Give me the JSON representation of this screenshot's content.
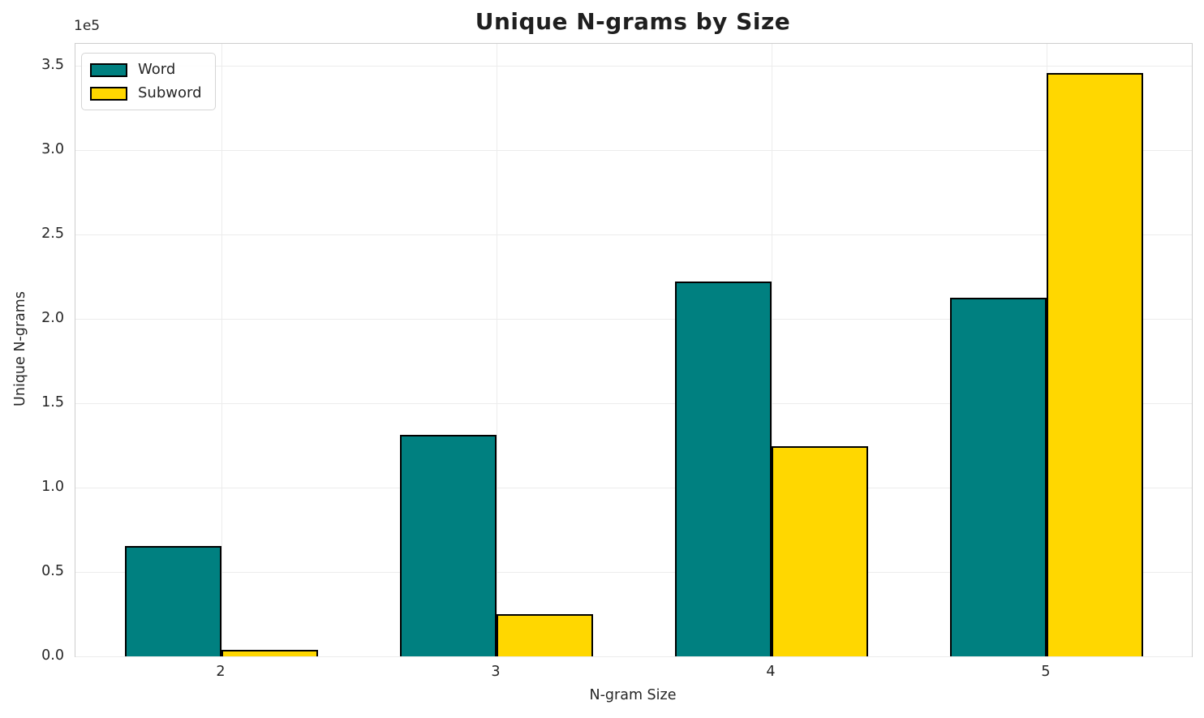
{
  "chart_data": {
    "type": "bar",
    "title": "Unique N-grams by Size",
    "xlabel": "N-gram Size",
    "ylabel": "Unique N-grams",
    "y_offset_text": "1e5",
    "categories": [
      "2",
      "3",
      "4",
      "5"
    ],
    "series": [
      {
        "name": "Word",
        "color": "#008080",
        "values": [
          65500,
          131500,
          222000,
          212500
        ]
      },
      {
        "name": "Subword",
        "color": "#FFD700",
        "values": [
          4000,
          24800,
          124500,
          345500
        ]
      }
    ],
    "ytick_labels": [
      "0.0",
      "0.5",
      "1.0",
      "1.5",
      "2.0",
      "2.5",
      "3.0",
      "3.5"
    ],
    "ytick_values": [
      0,
      50000,
      100000,
      150000,
      200000,
      250000,
      300000,
      350000
    ],
    "ylim": [
      0,
      363000
    ],
    "grid": true,
    "legend_position": "upper left",
    "bar_edge_color": "#000000"
  },
  "colors": {
    "title": "#1f1f1f",
    "text": "#262626",
    "grid": "#ececec",
    "spine": "#cdcdcd",
    "edge": "#000000"
  }
}
